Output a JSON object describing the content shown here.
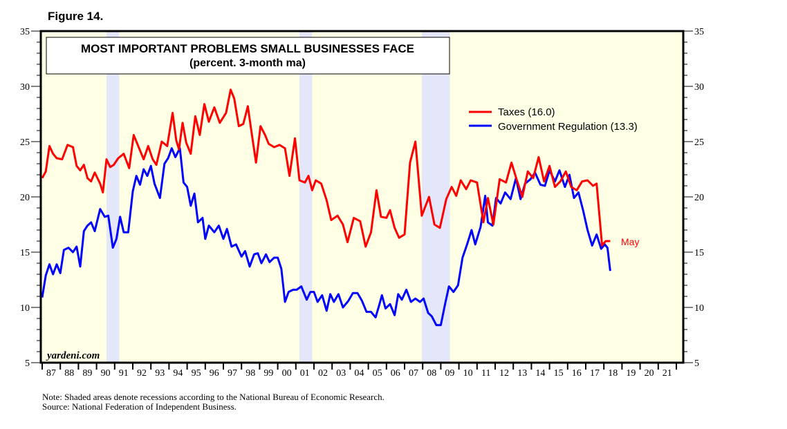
{
  "figure_label": "Figure 14.",
  "notes": {
    "note": "Note: Shaded areas denote recessions according to the National Bureau of Economic Research.",
    "source": "Source: National Federation of Independent Business."
  },
  "colors": {
    "plot_bg": "#ffffe6",
    "recession": "#e4e6fa",
    "taxes": "#ff0000",
    "regulation": "#0000ff"
  },
  "chart_data": {
    "type": "line",
    "title": "MOST IMPORTANT PROBLEMS SMALL BUSINESSES FACE",
    "subtitle": "(percent. 3-month ma)",
    "watermark": "yardeni.com",
    "xlabel": "",
    "ylabel": "",
    "xlim": [
      1986.95,
      2022.4
    ],
    "ylim": [
      5,
      35
    ],
    "yticks": [
      5,
      10,
      15,
      20,
      25,
      30,
      35
    ],
    "xtick_labels": [
      "87",
      "88",
      "89",
      "90",
      "91",
      "92",
      "93",
      "94",
      "95",
      "96",
      "97",
      "98",
      "99",
      "00",
      "01",
      "02",
      "03",
      "04",
      "05",
      "06",
      "07",
      "08",
      "09",
      "10",
      "11",
      "12",
      "13",
      "14",
      "15",
      "16",
      "17",
      "18",
      "19",
      "20",
      "21"
    ],
    "legend_position": "top-right",
    "recessions": [
      [
        1990.55,
        1991.25
      ],
      [
        2001.2,
        2001.9
      ],
      [
        2007.95,
        2009.5
      ]
    ],
    "end_annotation": {
      "label": "May",
      "series": "Taxes"
    },
    "series": [
      {
        "name": "Taxes",
        "legend": "Taxes (16.0)",
        "color": "#ff0000",
        "points": [
          [
            1987.0,
            21.7
          ],
          [
            1987.2,
            22.3
          ],
          [
            1987.4,
            24.6
          ],
          [
            1987.6,
            23.9
          ],
          [
            1987.8,
            23.5
          ],
          [
            1988.1,
            23.4
          ],
          [
            1988.4,
            24.7
          ],
          [
            1988.7,
            24.5
          ],
          [
            1988.9,
            22.8
          ],
          [
            1989.1,
            22.4
          ],
          [
            1989.3,
            22.9
          ],
          [
            1989.5,
            21.7
          ],
          [
            1989.7,
            21.4
          ],
          [
            1989.9,
            22.2
          ],
          [
            1990.2,
            21.2
          ],
          [
            1990.35,
            20.4
          ],
          [
            1990.55,
            23.4
          ],
          [
            1990.75,
            22.7
          ],
          [
            1990.95,
            22.9
          ],
          [
            1991.2,
            23.5
          ],
          [
            1991.5,
            23.9
          ],
          [
            1991.8,
            22.6
          ],
          [
            1992.05,
            25.6
          ],
          [
            1992.3,
            24.6
          ],
          [
            1992.6,
            23.4
          ],
          [
            1992.85,
            24.6
          ],
          [
            1993.1,
            23.4
          ],
          [
            1993.3,
            22.9
          ],
          [
            1993.6,
            25.0
          ],
          [
            1993.9,
            24.6
          ],
          [
            1994.2,
            27.6
          ],
          [
            1994.4,
            25.1
          ],
          [
            1994.55,
            24.3
          ],
          [
            1994.75,
            26.7
          ],
          [
            1994.95,
            24.9
          ],
          [
            1995.2,
            23.9
          ],
          [
            1995.45,
            27.3
          ],
          [
            1995.7,
            25.6
          ],
          [
            1995.95,
            28.4
          ],
          [
            1996.2,
            26.8
          ],
          [
            1996.5,
            28.1
          ],
          [
            1996.8,
            26.7
          ],
          [
            1997.15,
            27.6
          ],
          [
            1997.4,
            29.7
          ],
          [
            1997.6,
            28.9
          ],
          [
            1997.85,
            26.4
          ],
          [
            1998.1,
            26.6
          ],
          [
            1998.35,
            28.2
          ],
          [
            1998.55,
            25.9
          ],
          [
            1998.8,
            23.1
          ],
          [
            1999.05,
            26.4
          ],
          [
            1999.3,
            25.6
          ],
          [
            1999.5,
            24.8
          ],
          [
            1999.8,
            24.5
          ],
          [
            2000.1,
            24.7
          ],
          [
            2000.4,
            24.4
          ],
          [
            2000.65,
            21.9
          ],
          [
            2000.95,
            25.3
          ],
          [
            2001.2,
            21.5
          ],
          [
            2001.5,
            21.3
          ],
          [
            2001.7,
            21.9
          ],
          [
            2001.9,
            20.6
          ],
          [
            2002.1,
            21.5
          ],
          [
            2002.4,
            21.2
          ],
          [
            2002.7,
            19.7
          ],
          [
            2002.95,
            17.9
          ],
          [
            2003.3,
            18.3
          ],
          [
            2003.6,
            17.5
          ],
          [
            2003.85,
            15.9
          ],
          [
            2004.2,
            18.1
          ],
          [
            2004.55,
            17.8
          ],
          [
            2004.85,
            15.5
          ],
          [
            2005.15,
            16.8
          ],
          [
            2005.45,
            20.6
          ],
          [
            2005.7,
            18.2
          ],
          [
            2006.0,
            18.1
          ],
          [
            2006.2,
            18.8
          ],
          [
            2006.45,
            17.2
          ],
          [
            2006.7,
            16.3
          ],
          [
            2007.0,
            16.6
          ],
          [
            2007.3,
            23.1
          ],
          [
            2007.6,
            25.0
          ],
          [
            2007.95,
            18.3
          ],
          [
            2008.35,
            20.0
          ],
          [
            2008.65,
            17.5
          ],
          [
            2008.95,
            17.2
          ],
          [
            2009.3,
            19.8
          ],
          [
            2009.6,
            20.9
          ],
          [
            2009.85,
            20.1
          ],
          [
            2010.1,
            21.5
          ],
          [
            2010.4,
            20.7
          ],
          [
            2010.65,
            21.5
          ],
          [
            2011.0,
            21.3
          ],
          [
            2011.35,
            17.7
          ],
          [
            2011.6,
            19.9
          ],
          [
            2011.9,
            17.5
          ],
          [
            2012.25,
            21.6
          ],
          [
            2012.6,
            21.3
          ],
          [
            2012.9,
            23.1
          ],
          [
            2013.2,
            21.5
          ],
          [
            2013.5,
            20.0
          ],
          [
            2013.8,
            22.3
          ],
          [
            2014.1,
            21.7
          ],
          [
            2014.4,
            23.6
          ],
          [
            2014.7,
            21.4
          ],
          [
            2015.0,
            22.8
          ],
          [
            2015.3,
            20.9
          ],
          [
            2015.6,
            21.4
          ],
          [
            2015.9,
            22.3
          ],
          [
            2016.2,
            20.9
          ],
          [
            2016.5,
            20.6
          ],
          [
            2016.8,
            21.4
          ],
          [
            2017.1,
            21.5
          ],
          [
            2017.4,
            21.0
          ],
          [
            2017.6,
            21.2
          ],
          [
            2017.9,
            15.6
          ],
          [
            2018.1,
            16.0
          ],
          [
            2018.35,
            16.0
          ]
        ]
      },
      {
        "name": "Government Regulation",
        "legend": "Government Regulation (13.3)",
        "color": "#0000ff",
        "points": [
          [
            1987.0,
            10.9
          ],
          [
            1987.2,
            12.9
          ],
          [
            1987.4,
            13.9
          ],
          [
            1987.6,
            13.0
          ],
          [
            1987.8,
            13.9
          ],
          [
            1988.0,
            13.1
          ],
          [
            1988.2,
            15.2
          ],
          [
            1988.45,
            15.4
          ],
          [
            1988.7,
            15.0
          ],
          [
            1988.9,
            15.5
          ],
          [
            1989.1,
            13.7
          ],
          [
            1989.3,
            16.9
          ],
          [
            1989.5,
            17.4
          ],
          [
            1989.7,
            17.7
          ],
          [
            1989.9,
            16.9
          ],
          [
            1990.2,
            18.9
          ],
          [
            1990.45,
            18.2
          ],
          [
            1990.65,
            18.3
          ],
          [
            1990.9,
            15.4
          ],
          [
            1991.1,
            16.2
          ],
          [
            1991.3,
            18.2
          ],
          [
            1991.5,
            16.8
          ],
          [
            1991.75,
            16.8
          ],
          [
            1992.0,
            20.5
          ],
          [
            1992.2,
            21.9
          ],
          [
            1992.4,
            21.1
          ],
          [
            1992.6,
            22.5
          ],
          [
            1992.8,
            21.9
          ],
          [
            1993.0,
            22.8
          ],
          [
            1993.2,
            21.2
          ],
          [
            1993.5,
            19.9
          ],
          [
            1993.75,
            23.0
          ],
          [
            1993.95,
            23.5
          ],
          [
            1994.15,
            24.4
          ],
          [
            1994.35,
            23.6
          ],
          [
            1994.6,
            24.4
          ],
          [
            1994.8,
            21.3
          ],
          [
            1995.0,
            20.9
          ],
          [
            1995.2,
            19.2
          ],
          [
            1995.4,
            20.3
          ],
          [
            1995.6,
            17.7
          ],
          [
            1995.85,
            18.1
          ],
          [
            1996.0,
            16.2
          ],
          [
            1996.2,
            17.4
          ],
          [
            1996.5,
            16.8
          ],
          [
            1996.75,
            17.4
          ],
          [
            1997.0,
            16.2
          ],
          [
            1997.2,
            17.1
          ],
          [
            1997.45,
            15.5
          ],
          [
            1997.7,
            15.7
          ],
          [
            1998.0,
            14.6
          ],
          [
            1998.2,
            15.1
          ],
          [
            1998.45,
            13.7
          ],
          [
            1998.7,
            14.8
          ],
          [
            1998.9,
            14.9
          ],
          [
            1999.1,
            14.0
          ],
          [
            1999.35,
            14.8
          ],
          [
            1999.55,
            14.1
          ],
          [
            1999.8,
            14.5
          ],
          [
            2000.0,
            14.5
          ],
          [
            2000.2,
            13.5
          ],
          [
            2000.4,
            10.5
          ],
          [
            2000.6,
            11.4
          ],
          [
            2000.85,
            11.6
          ],
          [
            2001.05,
            11.6
          ],
          [
            2001.3,
            11.9
          ],
          [
            2001.6,
            10.7
          ],
          [
            2001.8,
            11.4
          ],
          [
            2002.0,
            11.4
          ],
          [
            2002.2,
            10.5
          ],
          [
            2002.45,
            11.1
          ],
          [
            2002.7,
            9.7
          ],
          [
            2002.9,
            11.2
          ],
          [
            2003.1,
            10.5
          ],
          [
            2003.35,
            11.2
          ],
          [
            2003.6,
            10.0
          ],
          [
            2003.9,
            10.6
          ],
          [
            2004.15,
            11.3
          ],
          [
            2004.4,
            11.3
          ],
          [
            2004.65,
            10.6
          ],
          [
            2004.9,
            9.6
          ],
          [
            2005.15,
            9.6
          ],
          [
            2005.4,
            9.1
          ],
          [
            2005.6,
            10.2
          ],
          [
            2005.75,
            11.1
          ],
          [
            2005.95,
            9.9
          ],
          [
            2006.2,
            10.3
          ],
          [
            2006.45,
            9.3
          ],
          [
            2006.65,
            11.2
          ],
          [
            2006.85,
            10.7
          ],
          [
            2007.1,
            11.6
          ],
          [
            2007.35,
            10.5
          ],
          [
            2007.6,
            10.8
          ],
          [
            2007.85,
            10.5
          ],
          [
            2008.05,
            10.8
          ],
          [
            2008.3,
            9.5
          ],
          [
            2008.5,
            9.2
          ],
          [
            2008.75,
            8.4
          ],
          [
            2009.0,
            8.4
          ],
          [
            2009.25,
            10.4
          ],
          [
            2009.45,
            11.9
          ],
          [
            2009.7,
            11.4
          ],
          [
            2009.95,
            12.0
          ],
          [
            2010.2,
            14.5
          ],
          [
            2010.45,
            15.7
          ],
          [
            2010.7,
            17.0
          ],
          [
            2010.9,
            15.7
          ],
          [
            2011.2,
            17.3
          ],
          [
            2011.45,
            20.1
          ],
          [
            2011.6,
            17.7
          ],
          [
            2011.85,
            17.4
          ],
          [
            2012.05,
            19.9
          ],
          [
            2012.3,
            19.4
          ],
          [
            2012.55,
            20.4
          ],
          [
            2012.85,
            19.8
          ],
          [
            2013.15,
            21.7
          ],
          [
            2013.4,
            19.8
          ],
          [
            2013.65,
            21.2
          ],
          [
            2013.95,
            21.6
          ],
          [
            2014.2,
            22.2
          ],
          [
            2014.5,
            21.1
          ],
          [
            2014.75,
            21.0
          ],
          [
            2015.0,
            22.4
          ],
          [
            2015.3,
            21.4
          ],
          [
            2015.55,
            22.4
          ],
          [
            2015.85,
            20.9
          ],
          [
            2016.1,
            22.0
          ],
          [
            2016.35,
            19.9
          ],
          [
            2016.6,
            20.4
          ],
          [
            2016.85,
            18.8
          ],
          [
            2017.1,
            17.0
          ],
          [
            2017.35,
            15.6
          ],
          [
            2017.6,
            16.6
          ],
          [
            2017.85,
            15.3
          ],
          [
            2018.05,
            15.7
          ],
          [
            2018.2,
            15.4
          ],
          [
            2018.35,
            13.3
          ]
        ]
      }
    ]
  }
}
